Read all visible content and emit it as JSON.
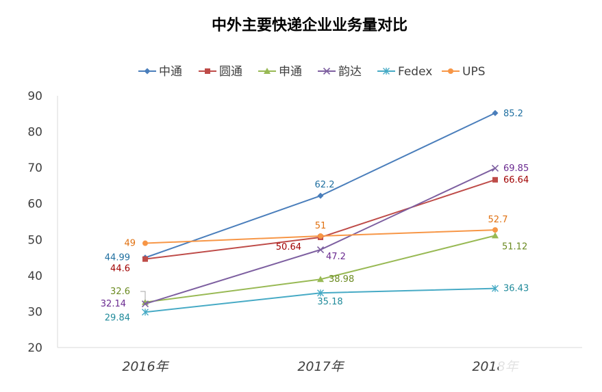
{
  "chart_data": {
    "type": "line",
    "title": "中外主要快递企业业务量对比",
    "categories": [
      "2016年",
      "2017年",
      "2018年"
    ],
    "ylim": [
      20,
      90
    ],
    "yticks": [
      20,
      30,
      40,
      50,
      60,
      70,
      80,
      90
    ],
    "grid": false,
    "legend_position": "top",
    "series": [
      {
        "name": "中通",
        "values": [
          44.99,
          62.2,
          85.2
        ],
        "labels": [
          "44.99",
          "62.2",
          "85.2"
        ],
        "color": "#4a7ebb",
        "marker": "diamond"
      },
      {
        "name": "圆通",
        "values": [
          44.6,
          50.64,
          66.64
        ],
        "labels": [
          "44.6",
          "50.64",
          "66.64"
        ],
        "color": "#be4b48",
        "marker": "square"
      },
      {
        "name": "申通",
        "values": [
          32.6,
          38.98,
          51.12
        ],
        "labels": [
          "32.6",
          "38.98",
          "51.12"
        ],
        "color": "#98b954",
        "marker": "triangle"
      },
      {
        "name": "韵达",
        "values": [
          32.14,
          47.2,
          69.85
        ],
        "labels": [
          "32.14",
          "47.2",
          "69.85"
        ],
        "color": "#7d5fa0",
        "marker": "x"
      },
      {
        "name": "Fedex",
        "values": [
          29.84,
          35.18,
          36.43
        ],
        "labels": [
          "29.84",
          "35.18",
          "36.43"
        ],
        "color": "#46aac5",
        "marker": "star"
      },
      {
        "name": "UPS",
        "values": [
          49,
          51,
          52.7
        ],
        "labels": [
          "49",
          "51",
          "52.7"
        ],
        "color": "#f79646",
        "marker": "circle"
      }
    ],
    "label_colors": [
      "#1f6fa0",
      "#a00000",
      "#6a8a20",
      "#6a2a90",
      "#1f8a9a",
      "#e07010"
    ]
  }
}
